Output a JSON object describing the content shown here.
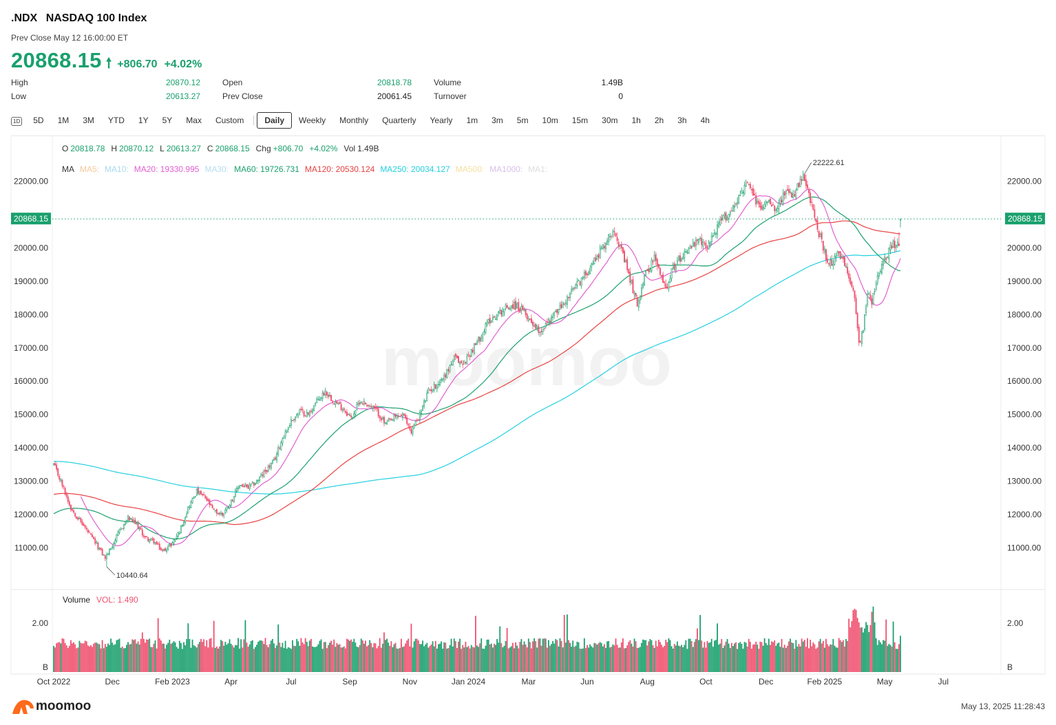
{
  "header": {
    "symbol": ".NDX",
    "name": "NASDAQ 100 Index",
    "prev_close_time": "Prev Close May 12 16:00:00 ET",
    "price": "20868.15",
    "change": "+806.70",
    "change_pct": "+4.02%",
    "up_color": "#1aa06d",
    "down_color": "#f0506e"
  },
  "stats": {
    "high_label": "High",
    "high": "20870.12",
    "low_label": "Low",
    "low": "20613.27",
    "open_label": "Open",
    "open": "20818.78",
    "prev_close_label": "Prev Close",
    "prev_close": "20061.45",
    "volume_label": "Volume",
    "volume": "1.49B",
    "turnover_label": "Turnover",
    "turnover": "0"
  },
  "tabs": {
    "icon_label": "1D",
    "range_tabs": [
      "5D",
      "1M",
      "3M",
      "YTD",
      "1Y",
      "5Y",
      "Max",
      "Custom"
    ],
    "interval_tabs": [
      "Daily",
      "Weekly",
      "Monthly",
      "Quarterly",
      "Yearly",
      "1m",
      "3m",
      "5m",
      "10m",
      "15m",
      "30m",
      "1h",
      "2h",
      "3h",
      "4h"
    ],
    "active": "Daily"
  },
  "ohlc_line": {
    "o_label": "O",
    "o": "20818.78",
    "h_label": "H",
    "h": "20870.12",
    "l_label": "L",
    "l": "20613.27",
    "c_label": "C",
    "c": "20868.15",
    "chg_label": "Chg",
    "chg": "+806.70",
    "chg_pct": "+4.02%",
    "vol_label": "Vol",
    "vol": "1.49B"
  },
  "ma_legend": {
    "label": "MA",
    "items": [
      {
        "text": "MA5:",
        "color": "#f5c89a"
      },
      {
        "text": "MA10:",
        "color": "#a8d8f0"
      },
      {
        "text": "MA20: 19330.995",
        "color": "#e060d0"
      },
      {
        "text": "MA30:",
        "color": "#b8dcf0"
      },
      {
        "text": "MA60: 19726.731",
        "color": "#1aa06d"
      },
      {
        "text": "MA120: 20530.124",
        "color": "#e84040"
      },
      {
        "text": "MA250: 20034.127",
        "color": "#22d0e0"
      },
      {
        "text": "MA500:",
        "color": "#f5e0a0"
      },
      {
        "text": "MA1000:",
        "color": "#d8c0e8"
      },
      {
        "text": "MA1:",
        "color": "#dddddd"
      }
    ]
  },
  "chart_data": {
    "type": "candlestick",
    "y_ticks": [
      "22000.00",
      "20000.00",
      "19000.00",
      "18000.00",
      "17000.00",
      "16000.00",
      "15000.00",
      "14000.00",
      "13000.00",
      "12000.00",
      "11000.00"
    ],
    "ylim": [
      9900,
      23100
    ],
    "x_ticks": [
      "Oct 2022",
      "Dec",
      "Feb 2023",
      "Apr",
      "Jul",
      "Sep",
      "Nov",
      "Jan 2024",
      "Mar",
      "Jun",
      "Aug",
      "Oct",
      "Dec",
      "Feb 2025",
      "May",
      "Jul"
    ],
    "high_annotation": "22222.61",
    "low_annotation": "10440.64",
    "current_price_label": "20868.15",
    "current_price": 20868.15,
    "close_series_anchor": [
      [
        0,
        13500
      ],
      [
        5,
        13000
      ],
      [
        12,
        12200
      ],
      [
        22,
        11600
      ],
      [
        30,
        11100
      ],
      [
        36,
        10700
      ],
      [
        40,
        11000
      ],
      [
        46,
        11500
      ],
      [
        52,
        11900
      ],
      [
        58,
        11700
      ],
      [
        64,
        11300
      ],
      [
        70,
        11200
      ],
      [
        76,
        10900
      ],
      [
        82,
        11100
      ],
      [
        88,
        11500
      ],
      [
        94,
        12200
      ],
      [
        100,
        12700
      ],
      [
        106,
        12500
      ],
      [
        112,
        12100
      ],
      [
        118,
        12000
      ],
      [
        124,
        12400
      ],
      [
        130,
        12900
      ],
      [
        136,
        12800
      ],
      [
        142,
        13000
      ],
      [
        148,
        13300
      ],
      [
        154,
        13600
      ],
      [
        160,
        14300
      ],
      [
        166,
        14800
      ],
      [
        172,
        15100
      ],
      [
        178,
        15000
      ],
      [
        184,
        15400
      ],
      [
        190,
        15700
      ],
      [
        196,
        15400
      ],
      [
        202,
        15200
      ],
      [
        208,
        14900
      ],
      [
        214,
        15400
      ],
      [
        220,
        15300
      ],
      [
        226,
        15100
      ],
      [
        232,
        14700
      ],
      [
        238,
        14900
      ],
      [
        244,
        15000
      ],
      [
        250,
        14500
      ],
      [
        256,
        15000
      ],
      [
        262,
        15700
      ],
      [
        268,
        15900
      ],
      [
        274,
        16200
      ],
      [
        280,
        16700
      ],
      [
        286,
        16500
      ],
      [
        292,
        16900
      ],
      [
        298,
        17300
      ],
      [
        304,
        17800
      ],
      [
        310,
        18000
      ],
      [
        316,
        18200
      ],
      [
        322,
        18300
      ],
      [
        328,
        18100
      ],
      [
        334,
        17800
      ],
      [
        340,
        17500
      ],
      [
        346,
        17800
      ],
      [
        352,
        18100
      ],
      [
        358,
        18400
      ],
      [
        364,
        18800
      ],
      [
        370,
        19100
      ],
      [
        376,
        19500
      ],
      [
        382,
        19900
      ],
      [
        388,
        20300
      ],
      [
        392,
        20600
      ],
      [
        396,
        20000
      ],
      [
        400,
        19500
      ],
      [
        404,
        18900
      ],
      [
        408,
        18300
      ],
      [
        412,
        19000
      ],
      [
        416,
        19400
      ],
      [
        420,
        19700
      ],
      [
        424,
        19200
      ],
      [
        428,
        18800
      ],
      [
        432,
        19300
      ],
      [
        436,
        19600
      ],
      [
        440,
        19800
      ],
      [
        444,
        20000
      ],
      [
        448,
        20100
      ],
      [
        452,
        20200
      ],
      [
        456,
        20000
      ],
      [
        460,
        20300
      ],
      [
        464,
        20600
      ],
      [
        468,
        20900
      ],
      [
        472,
        21000
      ],
      [
        476,
        21300
      ],
      [
        480,
        21600
      ],
      [
        484,
        21900
      ],
      [
        488,
        21700
      ],
      [
        492,
        21300
      ],
      [
        496,
        21200
      ],
      [
        500,
        21500
      ],
      [
        504,
        21200
      ],
      [
        508,
        21400
      ],
      [
        512,
        21700
      ],
      [
        516,
        21500
      ],
      [
        520,
        21800
      ],
      [
        524,
        22100
      ],
      [
        528,
        21600
      ],
      [
        532,
        20900
      ],
      [
        536,
        20300
      ],
      [
        540,
        19700
      ],
      [
        544,
        19500
      ],
      [
        548,
        19800
      ],
      [
        552,
        19600
      ],
      [
        556,
        19100
      ],
      [
        560,
        18600
      ],
      [
        563,
        17100
      ],
      [
        566,
        17600
      ],
      [
        569,
        18700
      ],
      [
        572,
        18400
      ],
      [
        575,
        18900
      ],
      [
        578,
        19400
      ],
      [
        581,
        19700
      ],
      [
        584,
        19900
      ],
      [
        587,
        20100
      ],
      [
        590,
        20061
      ],
      [
        592,
        20868
      ]
    ],
    "volume": {
      "label": "Volume",
      "value_label": "VOL: 1.490",
      "y_ticks": [
        "2.00",
        "B"
      ]
    }
  },
  "footer": {
    "brand": "moomoo",
    "watermark": "moomoo",
    "timestamp": "May 13, 2025 11:28:43"
  }
}
